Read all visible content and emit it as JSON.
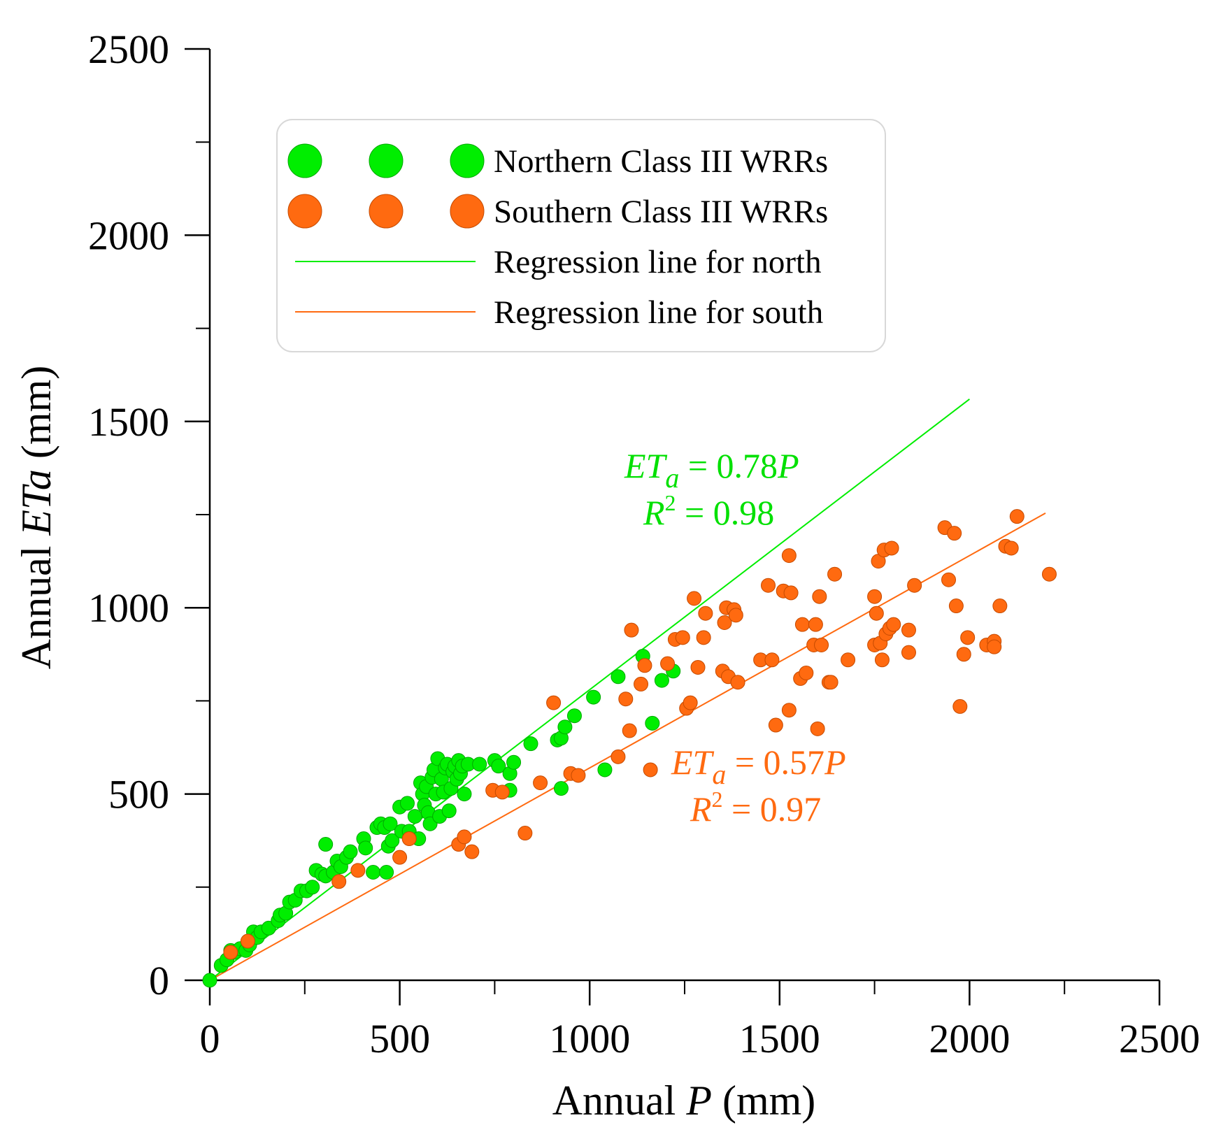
{
  "colors": {
    "north": "#00ee00",
    "north_stroke": "#00a800",
    "south": "#ff6a10",
    "south_stroke": "#c54a00",
    "axis": "#000000"
  },
  "legend": {
    "items": [
      {
        "label": "Northern Class III WRRs",
        "kind": "marker",
        "series": "north"
      },
      {
        "label": "Southern Class III WRRs",
        "kind": "marker",
        "series": "south"
      },
      {
        "label": "Regression line for north",
        "kind": "line",
        "series": "north"
      },
      {
        "label": "Regression line for south",
        "kind": "line",
        "series": "south"
      }
    ]
  },
  "annotations": {
    "north": {
      "eq_lhs": "ET",
      "eq_sub": "a",
      "eq_rhs": " = 0.78",
      "eq_var": "P",
      "r2_var": "R",
      "r2_sup": "2",
      "r2_rhs": " = 0.98"
    },
    "south": {
      "eq_lhs": "ET",
      "eq_sub": "a",
      "eq_rhs": " = 0.57",
      "eq_var": "P",
      "r2_var": "R",
      "r2_sup": "2",
      "r2_rhs": " = 0.97"
    }
  },
  "chart_data": {
    "type": "scatter",
    "xlabel_prefix": "Annual ",
    "xlabel_var": "P",
    "xlabel_suffix": " (mm)",
    "ylabel_prefix": "Annual ",
    "ylabel_var": "ETa",
    "ylabel_suffix": " (mm)",
    "xlim": [
      0,
      2500
    ],
    "ylim": [
      0,
      2500
    ],
    "major_ticks": [
      0,
      500,
      1000,
      1500,
      2000,
      2500
    ],
    "minor_ticks": [
      250,
      750,
      1250,
      1750,
      2250
    ],
    "regression": [
      {
        "name": "Regression line for north",
        "series": "north",
        "slope": 0.78,
        "x_range": [
          0,
          2000
        ]
      },
      {
        "name": "Regression line for south",
        "series": "south",
        "slope": 0.57,
        "x_range": [
          0,
          2200
        ]
      }
    ],
    "series": [
      {
        "name": "Northern Class III WRRs",
        "key": "north",
        "points": [
          [
            0,
            0
          ],
          [
            30,
            40
          ],
          [
            45,
            55
          ],
          [
            55,
            80
          ],
          [
            65,
            75
          ],
          [
            80,
            85
          ],
          [
            95,
            80
          ],
          [
            105,
            95
          ],
          [
            115,
            130
          ],
          [
            125,
            115
          ],
          [
            135,
            130
          ],
          [
            155,
            140
          ],
          [
            180,
            160
          ],
          [
            185,
            175
          ],
          [
            200,
            180
          ],
          [
            210,
            210
          ],
          [
            225,
            215
          ],
          [
            240,
            240
          ],
          [
            255,
            240
          ],
          [
            270,
            250
          ],
          [
            280,
            295
          ],
          [
            295,
            285
          ],
          [
            305,
            280
          ],
          [
            305,
            365
          ],
          [
            325,
            290
          ],
          [
            335,
            320
          ],
          [
            345,
            305
          ],
          [
            360,
            330
          ],
          [
            370,
            345
          ],
          [
            405,
            380
          ],
          [
            410,
            355
          ],
          [
            430,
            290
          ],
          [
            440,
            410
          ],
          [
            450,
            420
          ],
          [
            460,
            410
          ],
          [
            465,
            290
          ],
          [
            470,
            360
          ],
          [
            475,
            420
          ],
          [
            480,
            375
          ],
          [
            500,
            465
          ],
          [
            505,
            400
          ],
          [
            520,
            475
          ],
          [
            525,
            400
          ],
          [
            540,
            440
          ],
          [
            550,
            380
          ],
          [
            555,
            530
          ],
          [
            560,
            500
          ],
          [
            565,
            470
          ],
          [
            570,
            520
          ],
          [
            575,
            450
          ],
          [
            580,
            420
          ],
          [
            585,
            545
          ],
          [
            590,
            565
          ],
          [
            595,
            500
          ],
          [
            600,
            595
          ],
          [
            605,
            440
          ],
          [
            610,
            540
          ],
          [
            615,
            505
          ],
          [
            620,
            570
          ],
          [
            625,
            580
          ],
          [
            630,
            455
          ],
          [
            635,
            515
          ],
          [
            640,
            560
          ],
          [
            645,
            575
          ],
          [
            650,
            540
          ],
          [
            655,
            590
          ],
          [
            660,
            555
          ],
          [
            665,
            575
          ],
          [
            670,
            500
          ],
          [
            680,
            580
          ],
          [
            710,
            580
          ],
          [
            750,
            590
          ],
          [
            760,
            575
          ],
          [
            790,
            510
          ],
          [
            790,
            555
          ],
          [
            800,
            585
          ],
          [
            845,
            635
          ],
          [
            915,
            645
          ],
          [
            925,
            515
          ],
          [
            925,
            650
          ],
          [
            935,
            680
          ],
          [
            960,
            710
          ],
          [
            1010,
            760
          ],
          [
            1040,
            565
          ],
          [
            1075,
            815
          ],
          [
            1140,
            870
          ],
          [
            1165,
            690
          ],
          [
            1190,
            805
          ],
          [
            1220,
            830
          ]
        ]
      },
      {
        "name": "Southern Class III WRRs",
        "key": "south",
        "points": [
          [
            55,
            75
          ],
          [
            100,
            105
          ],
          [
            340,
            265
          ],
          [
            390,
            295
          ],
          [
            500,
            330
          ],
          [
            525,
            380
          ],
          [
            655,
            365
          ],
          [
            670,
            385
          ],
          [
            690,
            345
          ],
          [
            745,
            510
          ],
          [
            770,
            505
          ],
          [
            830,
            395
          ],
          [
            870,
            530
          ],
          [
            905,
            745
          ],
          [
            950,
            555
          ],
          [
            970,
            550
          ],
          [
            1075,
            600
          ],
          [
            1095,
            755
          ],
          [
            1105,
            670
          ],
          [
            1110,
            940
          ],
          [
            1135,
            795
          ],
          [
            1145,
            845
          ],
          [
            1160,
            565
          ],
          [
            1205,
            850
          ],
          [
            1225,
            915
          ],
          [
            1245,
            920
          ],
          [
            1255,
            730
          ],
          [
            1265,
            745
          ],
          [
            1275,
            1025
          ],
          [
            1285,
            840
          ],
          [
            1300,
            920
          ],
          [
            1305,
            985
          ],
          [
            1350,
            830
          ],
          [
            1355,
            960
          ],
          [
            1360,
            1000
          ],
          [
            1365,
            815
          ],
          [
            1380,
            995
          ],
          [
            1385,
            980
          ],
          [
            1390,
            800
          ],
          [
            1450,
            860
          ],
          [
            1470,
            1060
          ],
          [
            1480,
            860
          ],
          [
            1490,
            685
          ],
          [
            1510,
            1045
          ],
          [
            1525,
            725
          ],
          [
            1525,
            1140
          ],
          [
            1530,
            1040
          ],
          [
            1555,
            810
          ],
          [
            1560,
            955
          ],
          [
            1570,
            825
          ],
          [
            1590,
            900
          ],
          [
            1595,
            955
          ],
          [
            1600,
            675
          ],
          [
            1605,
            1030
          ],
          [
            1610,
            900
          ],
          [
            1630,
            800
          ],
          [
            1635,
            800
          ],
          [
            1645,
            1090
          ],
          [
            1680,
            860
          ],
          [
            1750,
            900
          ],
          [
            1750,
            1030
          ],
          [
            1755,
            985
          ],
          [
            1760,
            1125
          ],
          [
            1765,
            905
          ],
          [
            1770,
            860
          ],
          [
            1775,
            1155
          ],
          [
            1780,
            930
          ],
          [
            1790,
            945
          ],
          [
            1795,
            1160
          ],
          [
            1800,
            955
          ],
          [
            1840,
            880
          ],
          [
            1840,
            940
          ],
          [
            1855,
            1060
          ],
          [
            1935,
            1215
          ],
          [
            1945,
            1075
          ],
          [
            1960,
            1200
          ],
          [
            1965,
            1005
          ],
          [
            1975,
            735
          ],
          [
            1985,
            875
          ],
          [
            1995,
            920
          ],
          [
            2045,
            900
          ],
          [
            2065,
            910
          ],
          [
            2065,
            895
          ],
          [
            2080,
            1005
          ],
          [
            2095,
            1165
          ],
          [
            2110,
            1160
          ],
          [
            2125,
            1245
          ],
          [
            2210,
            1090
          ]
        ]
      }
    ]
  }
}
